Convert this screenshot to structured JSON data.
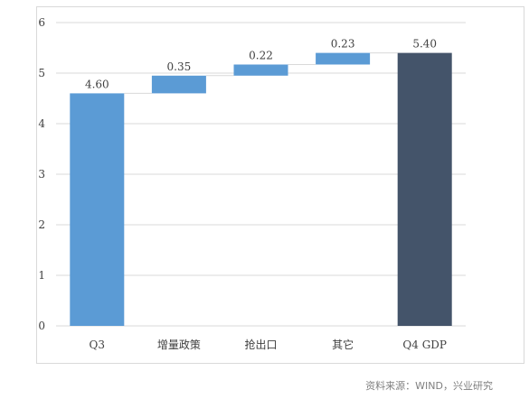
{
  "chart_data": {
    "type": "bar",
    "subtype": "waterfall",
    "categories": [
      "Q3",
      "增量政策",
      "抢出口",
      "其它",
      "Q4 GDP"
    ],
    "values": [
      4.6,
      0.35,
      0.22,
      0.23,
      5.4
    ],
    "data_labels": [
      "4.60",
      "0.35",
      "0.22",
      "0.23",
      "5.40"
    ],
    "bar_kinds": [
      "total",
      "delta",
      "delta",
      "delta",
      "total"
    ],
    "ylim": [
      0,
      6
    ],
    "yticks": [
      0,
      1,
      2,
      3,
      4,
      5,
      6
    ],
    "grid": true,
    "legend": "none",
    "colors": {
      "start_total": "#5b9bd5",
      "delta": "#5b9bd5",
      "end_total": "#44546a",
      "grid": "#d9d9d9",
      "connector": "#d9d9d9"
    }
  },
  "source_note": "资料来源：WIND，兴业研究"
}
